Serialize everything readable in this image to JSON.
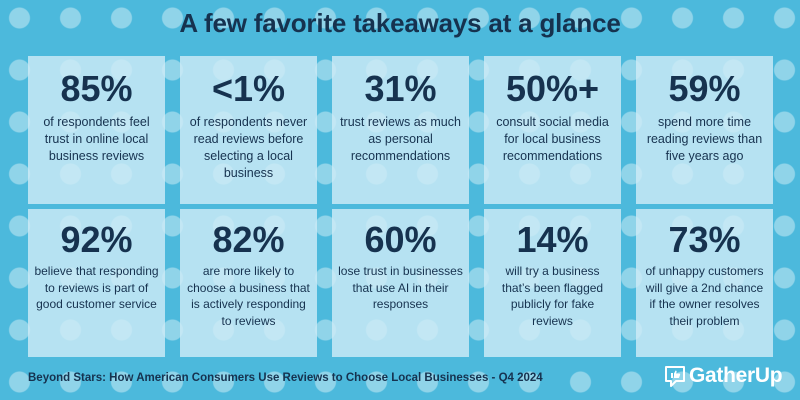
{
  "title": "A few favorite takeaways at a glance",
  "cards": [
    {
      "stat": "85%",
      "desc": "of respondents feel trust in online local business reviews"
    },
    {
      "stat": "<1%",
      "desc": "of respondents never read reviews before selecting a local business"
    },
    {
      "stat": "31%",
      "desc": "trust reviews as much as personal recommendations"
    },
    {
      "stat": "50%+",
      "desc": "consult social media for local business recommendations"
    },
    {
      "stat": "59%",
      "desc": "spend more time reading reviews than five years ago"
    },
    {
      "stat": "92%",
      "desc": "believe that responding to reviews is part of good customer service"
    },
    {
      "stat": "82%",
      "desc": "are more likely to choose a business that is actively responding to reviews"
    },
    {
      "stat": "60%",
      "desc": "lose trust in businesses that use AI in their responses"
    },
    {
      "stat": "14%",
      "desc": "will try a business that’s been flagged publicly for fake reviews"
    },
    {
      "stat": "73%",
      "desc": "of unhappy customers will give a 2nd chance if the owner resolves their problem"
    }
  ],
  "footer": "Beyond Stars: How American Consumers Use Reviews to Choose Local Businesses - Q4 2024",
  "logo": {
    "text": "GatherUp",
    "icon": "gatherup-like-bubble-icon"
  },
  "colors": {
    "background": "#4cb9dc",
    "card": "#ceecf7",
    "text": "#16324f",
    "logo": "#ffffff"
  }
}
